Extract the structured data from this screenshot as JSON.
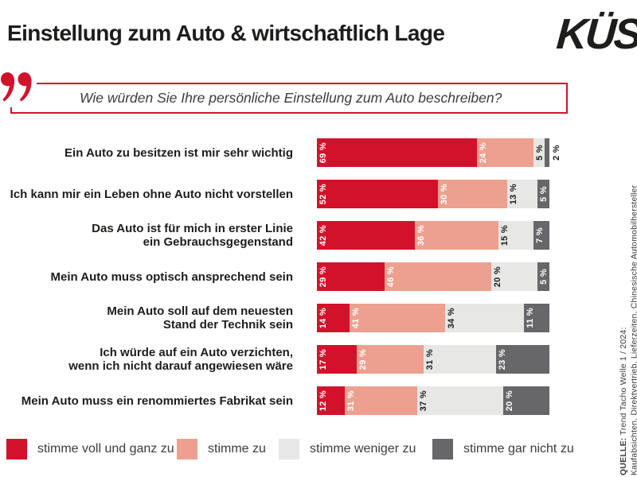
{
  "header": {
    "title": "Einstellung zum Auto & wirtschaftlich Lage",
    "logo": "KÜS"
  },
  "question": "Wie würden Sie Ihre persönliche Einstellung zum Auto beschreiben?",
  "source": {
    "label": "QUELLE:",
    "line1": "Trend Tacho Welle 1 / 2024:",
    "line2": "Kaufabsichten, Direktvertrieb, Lieferzeiten, Chinesische Automobilhersteller"
  },
  "colors": {
    "accent_red": "#d2122b",
    "salmon": "#eda08f",
    "light_gray": "#e7e7e5",
    "dark_gray": "#67676a"
  },
  "chart_data": {
    "type": "bar",
    "stacked": true,
    "orientation": "horizontal",
    "unit": "%",
    "xlim": [
      0,
      100
    ],
    "grid": false,
    "legend_position": "bottom",
    "categories": [
      [
        "Ein Auto zu besitzen ist mir sehr wichtig"
      ],
      [
        "Ich kann mir ein Leben ohne Auto nicht vorstellen"
      ],
      [
        "Das Auto ist für mich in erster Linie",
        "ein Gebrauchsgegenstand"
      ],
      [
        "Mein Auto muss optisch ansprechend sein"
      ],
      [
        "Mein Auto soll auf dem neuesten",
        "Stand der Technik sein"
      ],
      [
        "Ich würde auf ein Auto verzichten,",
        "wenn ich nicht darauf angewiesen wäre"
      ],
      [
        "Mein Auto muss ein renommiertes Fabrikat sein"
      ]
    ],
    "series": [
      {
        "name": "stimme voll und ganz zu",
        "color": "#d2122b",
        "label_color": "#ffffff",
        "values": [
          69,
          52,
          42,
          29,
          14,
          17,
          12
        ]
      },
      {
        "name": "stimme zu",
        "color": "#eda08f",
        "label_color": "#ffffff",
        "values": [
          24,
          30,
          36,
          46,
          41,
          29,
          31
        ]
      },
      {
        "name": "stimme weniger zu",
        "color": "#e7e7e5",
        "label_color": "#1d1d1b",
        "values": [
          5,
          13,
          15,
          20,
          34,
          31,
          37
        ]
      },
      {
        "name": "stimme gar nicht zu",
        "color": "#67676a",
        "label_color": "#ffffff",
        "values": [
          2,
          5,
          7,
          5,
          11,
          23,
          20
        ]
      }
    ]
  }
}
